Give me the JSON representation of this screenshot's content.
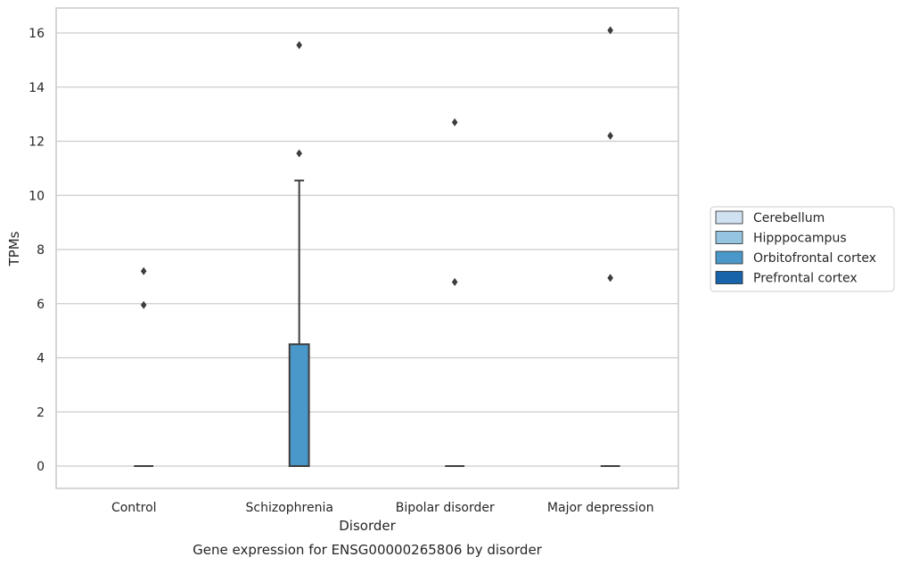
{
  "chart_data": {
    "type": "box",
    "caption": "Gene expression for ENSG00000265806 by disorder",
    "xlabel": "Disorder",
    "ylabel": "TPMs",
    "ylim": [
      -0.8,
      16.9
    ],
    "yticks": [
      0,
      2,
      4,
      6,
      8,
      10,
      12,
      14,
      16
    ],
    "grid": true,
    "legend_position": "right",
    "categories": [
      "Control",
      "Schizophrenia",
      "Bipolar disorder",
      "Major depression"
    ],
    "series": [
      {
        "name": "Cerebellum",
        "color": "#d0e1f2"
      },
      {
        "name": "Hipppocampus",
        "color": "#94c4df"
      },
      {
        "name": "Orbitofrontal cortex",
        "color": "#4a98c9"
      },
      {
        "name": "Prefrontal cortex",
        "color": "#1764ab"
      }
    ],
    "boxes": [
      {
        "category": "Control",
        "series": "Orbitofrontal cortex",
        "q1": 0,
        "median": 0,
        "q3": 0,
        "whisker_low": 0,
        "whisker_high": 0,
        "outliers": [
          7.2,
          5.95
        ]
      },
      {
        "category": "Schizophrenia",
        "series": "Orbitofrontal cortex",
        "q1": 0,
        "median": 0,
        "q3": 4.5,
        "whisker_low": 0,
        "whisker_high": 10.55,
        "outliers": [
          15.55,
          11.55
        ]
      },
      {
        "category": "Bipolar disorder",
        "series": "Orbitofrontal cortex",
        "q1": 0,
        "median": 0,
        "q3": 0,
        "whisker_low": 0,
        "whisker_high": 0,
        "outliers": [
          12.7,
          6.8
        ]
      },
      {
        "category": "Major depression",
        "series": "Orbitofrontal cortex",
        "q1": 0,
        "median": 0,
        "q3": 0,
        "whisker_low": 0,
        "whisker_high": 0,
        "outliers": [
          16.1,
          12.2,
          6.95
        ]
      }
    ]
  }
}
